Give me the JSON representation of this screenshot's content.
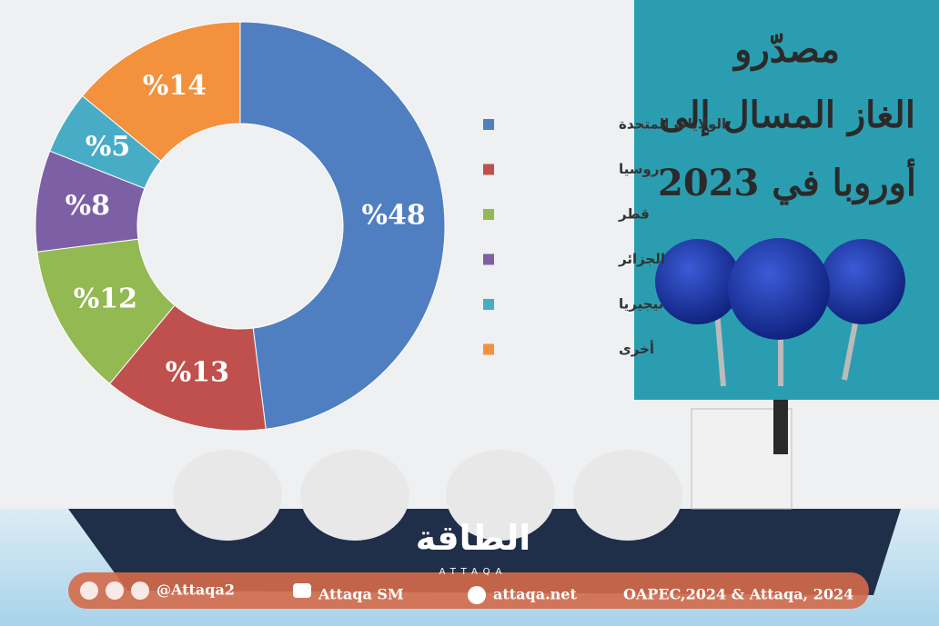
{
  "chart_data": {
    "type": "donut",
    "title": [
      "مصدّرو",
      "الغاز المسال إلى",
      "أوروبا في 2023"
    ],
    "categories": [
      "الولايات المتحدة",
      "روسيا",
      "قطر",
      "الجزائر",
      "نيجيريا",
      "أخرى"
    ],
    "values": [
      48,
      13,
      12,
      8,
      5,
      14
    ],
    "value_labels": [
      "%48",
      "%13",
      "%12",
      "%8",
      "%5",
      "%14"
    ],
    "colors": [
      "#4f7fc0",
      "#c0504d",
      "#93b953",
      "#7d5fa5",
      "#48acc6",
      "#f3913d"
    ]
  },
  "footer": {
    "logo": "الطاقة",
    "logo_sub": "ATTAQA",
    "handle": "@Attaqa2",
    "channel": "Attaqa SM",
    "site": "attaqa.net",
    "source": "OAPEC,2024 & Attaqa, 2024"
  }
}
